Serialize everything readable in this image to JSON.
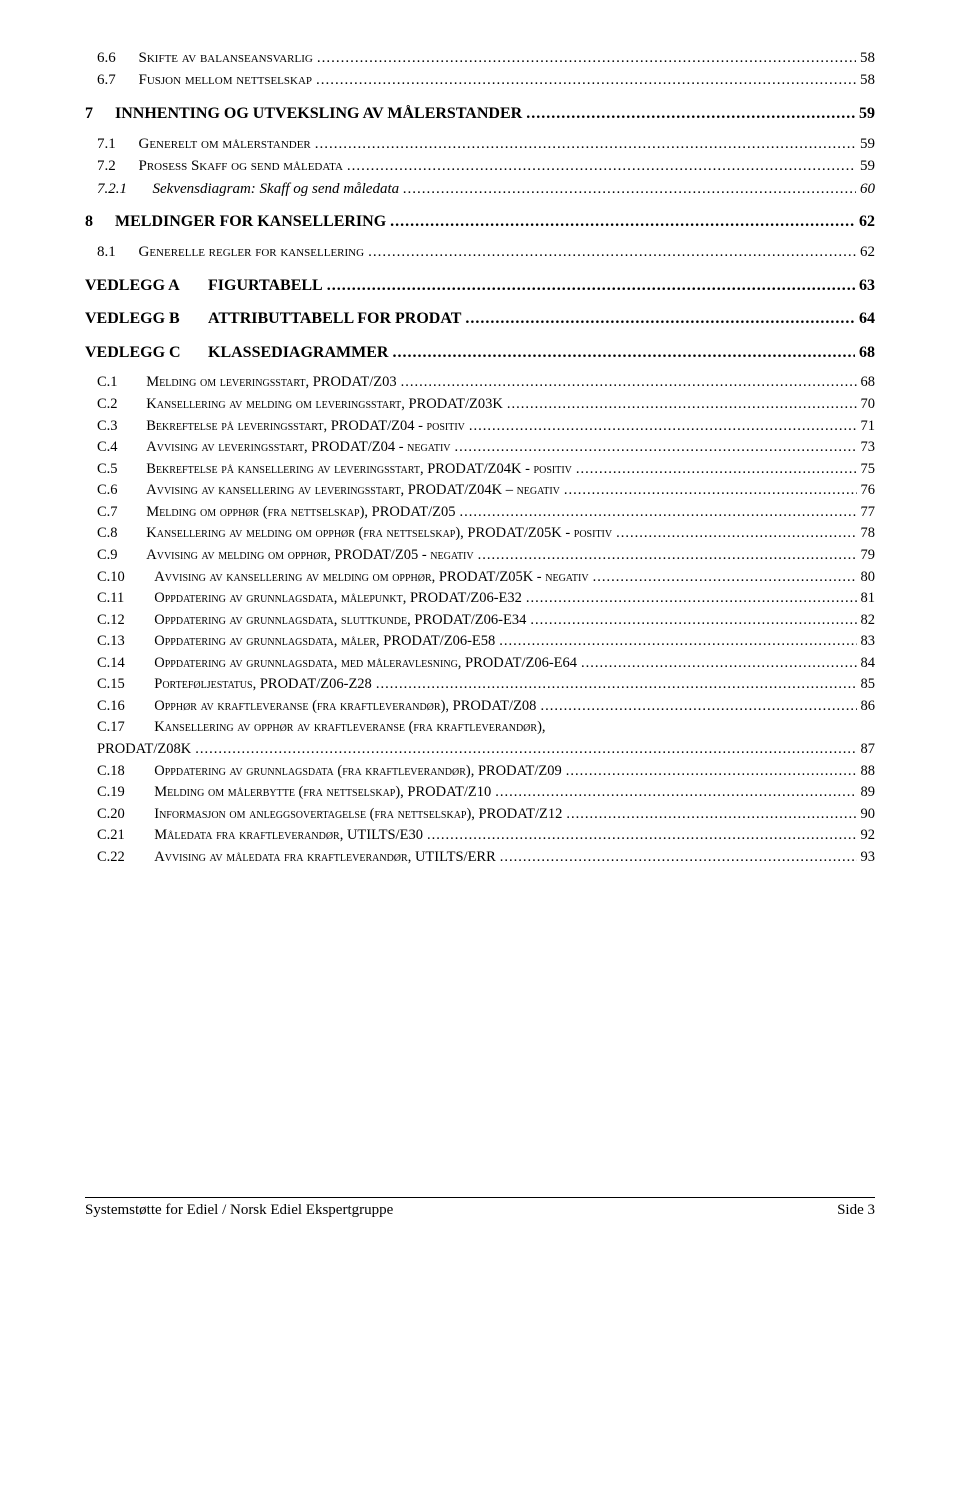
{
  "toc": [
    {
      "cls": "lvl2",
      "num": "6.6",
      "text": "Skifte av balanseansvarlig",
      "page": "58"
    },
    {
      "cls": "lvl2",
      "num": "6.7",
      "text": "Fusjon mellom nettselskap",
      "page": "58"
    },
    {
      "cls": "lvl1",
      "num": "7",
      "text": "INNHENTING OG UTVEKSLING AV MÅLERSTANDER",
      "page": "59"
    },
    {
      "cls": "lvl2",
      "num": "7.1",
      "text": "Generelt om målerstander",
      "page": "59"
    },
    {
      "cls": "lvl2",
      "num": "7.2",
      "text": "Prosess Skaff og send måledata",
      "page": "59"
    },
    {
      "cls": "lvl3",
      "num": "7.2.1",
      "text": "Sekvensdiagram: Skaff og send måledata",
      "page": "60"
    },
    {
      "cls": "lvl1",
      "num": "8",
      "text": "MELDINGER FOR KANSELLERING",
      "page": "62"
    },
    {
      "cls": "lvl2",
      "num": "8.1",
      "text": "Generelle regler for kansellering",
      "page": "62"
    },
    {
      "cls": "vedlegg",
      "num": "VEDLEGG A",
      "text": "FIGURTABELL",
      "page": "63"
    },
    {
      "cls": "vedlegg",
      "num": "VEDLEGG B",
      "text": "ATTRIBUTTABELL FOR PRODAT",
      "page": "64"
    },
    {
      "cls": "vedlegg",
      "num": "VEDLEGG C",
      "text": "KLASSEDIAGRAMMER",
      "page": "68"
    }
  ],
  "c": [
    {
      "num": "C.1",
      "text": "Melding om leveringsstart, PRODAT/Z03",
      "page": "68"
    },
    {
      "num": "C.2",
      "text": "Kansellering av melding om leveringsstart, PRODAT/Z03K",
      "page": "70"
    },
    {
      "num": "C.3",
      "text": "Bekreftelse på leveringsstart, PRODAT/Z04 - positiv",
      "page": "71"
    },
    {
      "num": "C.4",
      "text": "Avvising av leveringsstart, PRODAT/Z04 - negativ",
      "page": "73"
    },
    {
      "num": "C.5",
      "text": "Bekreftelse på kansellering av leveringsstart, PRODAT/Z04K - positiv",
      "page": "75"
    },
    {
      "num": "C.6",
      "text": "Avvising av kansellering av leveringsstart, PRODAT/Z04K – negativ",
      "page": "76"
    },
    {
      "num": "C.7",
      "text": "Melding om opphør (fra nettselskap), PRODAT/Z05",
      "page": "77"
    },
    {
      "num": "C.8",
      "text": "Kansellering av melding om opphør (fra nettselskap), PRODAT/Z05K - positiv",
      "page": "78"
    },
    {
      "num": "C.9",
      "text": "Avvising av melding om opphør, PRODAT/Z05 - negativ",
      "page": "79"
    },
    {
      "num": "C.10",
      "text": "Avvising av kansellering av melding om opphør, PRODAT/Z05K - negativ",
      "page": "80"
    },
    {
      "num": "C.11",
      "text": "Oppdatering av grunnlagsdata, målepunkt, PRODAT/Z06-E32",
      "page": "81"
    },
    {
      "num": "C.12",
      "text": "Oppdatering av grunnlagsdata, sluttkunde, PRODAT/Z06-E34",
      "page": "82"
    },
    {
      "num": "C.13",
      "text": "Oppdatering av grunnlagsdata, måler, PRODAT/Z06-E58",
      "page": "83"
    },
    {
      "num": "C.14",
      "text": "Oppdatering av grunnlagsdata, med måleravlesning, PRODAT/Z06-E64",
      "page": "84"
    },
    {
      "num": "C.15",
      "text": "Porteføljestatus, PRODAT/Z06-Z28",
      "page": "85"
    },
    {
      "num": "C.16",
      "text": "Opphør av kraftleveranse (fra kraftleverandør), PRODAT/Z08",
      "page": "86"
    },
    {
      "num": "C.17",
      "text": "Kansellering av opphør av kraftleveranse (fra kraftleverandør),",
      "page": ""
    },
    {
      "num": "",
      "text": "PRODAT/Z08K",
      "page": "87",
      "cont": true
    },
    {
      "num": "C.18",
      "text": "Oppdatering av grunnlagsdata (fra kraftleverandør), PRODAT/Z09",
      "page": "88"
    },
    {
      "num": "C.19",
      "text": "Melding om målerbytte (fra nettselskap), PRODAT/Z10",
      "page": "89"
    },
    {
      "num": "C.20",
      "text": "Informasjon om anleggsovertagelse (fra nettselskap), PRODAT/Z12",
      "page": "90"
    },
    {
      "num": "C.21",
      "text": "Måledata fra kraftleverandør, UTILTS/E30",
      "page": "92"
    },
    {
      "num": "C.22",
      "text": "Avvising av måledata fra kraftleverandør, UTILTS/ERR",
      "page": "93"
    }
  ],
  "footer": {
    "left": "Systemstøtte for Ediel / Norsk Ediel Ekspertgruppe",
    "right": "Side 3"
  }
}
